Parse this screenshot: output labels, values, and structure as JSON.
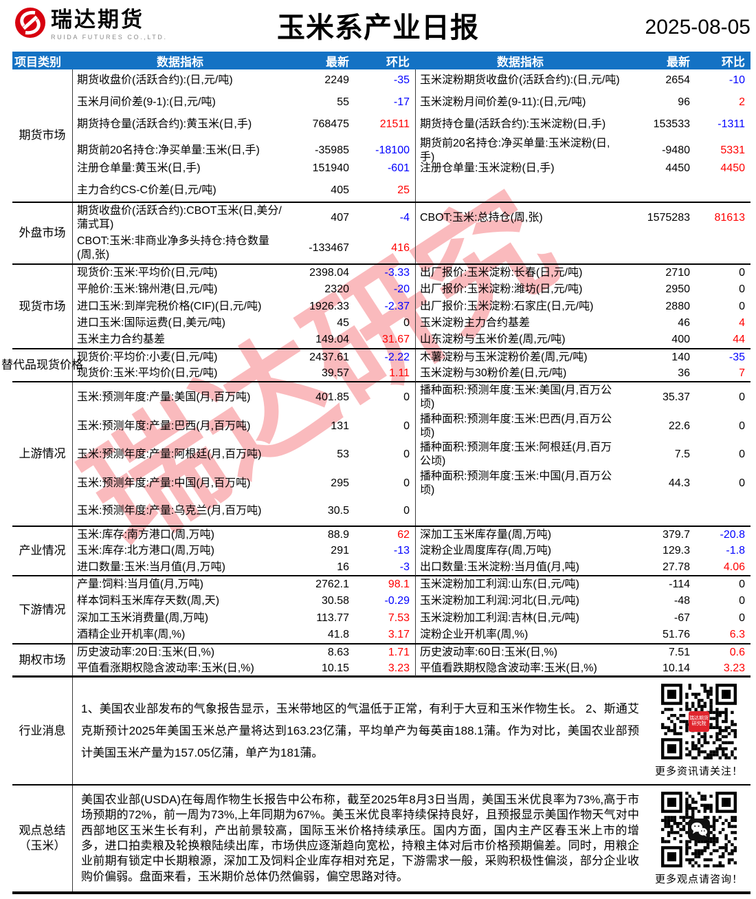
{
  "header": {
    "logo_name": "瑞达期货",
    "logo_sub": "RUIDA FUTURES CO.,LTD.",
    "title": "玉米系产业日报",
    "date": "2025-08-05"
  },
  "table_header": {
    "category": "项目类别",
    "indicator_left": "数据指标",
    "latest_left": "最新",
    "chg_left": "环比",
    "indicator_right": "数据指标",
    "latest_right": "最新",
    "chg_right": "环比"
  },
  "colors": {
    "header_bg": "#1472c4",
    "positive": "#ff0000",
    "negative": "#0000ff",
    "neutral": "#000000",
    "brand_red": "#d7000f",
    "watermark": "rgba(237,28,36,0.30)"
  },
  "watermark_text": "瑞达研究",
  "sections": [
    {
      "id": "futures",
      "category": "期货市场",
      "rows": [
        {
          "l": [
            "期货收盘价(活跃合约):(日,元/吨)",
            "2249",
            "-35"
          ],
          "r": [
            "玉米淀粉期货收盘价(活跃合约):(日,元/吨)",
            "2654",
            "-10"
          ]
        },
        {
          "l": [
            "玉米月间价差(9-1):(日,元/吨)",
            "55",
            "-17"
          ],
          "r": [
            "玉米淀粉月间价差(9-11):(日,元/吨)",
            "96",
            "2"
          ]
        },
        {
          "l": [
            "期货持仓量(活跃合约):黄玉米(日,手)",
            "768475",
            "21511"
          ],
          "r": [
            "期货持仓量(活跃合约):玉米淀粉(日,手)",
            "153533",
            "-1311"
          ]
        },
        {
          "l": [
            "期货前20名持仓:净买单量:玉米(日,手)",
            "-35985",
            "-18100"
          ],
          "r": [
            "期货前20名持仓:净买单量:玉米淀粉(日,手)",
            "-9480",
            "5331"
          ]
        },
        {
          "l": [
            "注册仓单量:黄玉米(日,手)",
            "151940",
            "-601"
          ],
          "r": [
            "注册仓单量:玉米淀粉(日,手)",
            "4450",
            "4450"
          ]
        },
        {
          "l": [
            "主力合约CS-C价差(日,元/吨)",
            "405",
            "25"
          ],
          "r": null
        }
      ]
    },
    {
      "id": "foreign",
      "category": "外盘市场",
      "rows": [
        {
          "l": [
            "期货收盘价(活跃合约):CBOT玉米(日,美分/蒲式耳)",
            "407",
            "-4"
          ],
          "r": [
            "CBOT:玉米:总持仓(周,张)",
            "1575283",
            "81613"
          ]
        },
        {
          "l": [
            "CBOT:玉米:非商业净多头持仓:持仓数量(周,张)",
            "-133467",
            "416"
          ],
          "r": null
        }
      ]
    },
    {
      "id": "spot",
      "category": "现货市场",
      "rows": [
        {
          "l": [
            "现货价:玉米:平均价(日,元/吨)",
            "2398.04",
            "-3.33"
          ],
          "r": [
            "出厂报价:玉米淀粉:长春(日,元/吨)",
            "2710",
            "0"
          ]
        },
        {
          "l": [
            "平舱价:玉米:锦州港(日,元/吨)",
            "2320",
            "-20"
          ],
          "r": [
            "出厂报价:玉米淀粉:潍坊(日,元/吨)",
            "2950",
            "0"
          ]
        },
        {
          "l": [
            "进口玉米:到岸完税价格(CIF)(日,元/吨)",
            "1926.33",
            "-2.37"
          ],
          "r": [
            "出厂报价:玉米淀粉:石家庄(日,元/吨)",
            "2880",
            "0"
          ]
        },
        {
          "l": [
            "进口玉米:国际运费(日,美元/吨)",
            "45",
            "0"
          ],
          "r": [
            "玉米淀粉主力合约基差",
            "46",
            "4"
          ]
        },
        {
          "l": [
            "玉米主力合约基差",
            "149.04",
            "31.67"
          ],
          "r": [
            "山东淀粉与玉米价差(周,元/吨)",
            "400",
            "44"
          ]
        }
      ]
    },
    {
      "id": "substitute",
      "category": "替代品现货价格",
      "rows": [
        {
          "l": [
            "现货价:平均价:小麦(日,元/吨)",
            "2437.61",
            "-2.22"
          ],
          "r": [
            "木薯淀粉与玉米淀粉价差(周,元/吨)",
            "140",
            "-35"
          ]
        },
        {
          "l": [
            "现货价:玉米:平均价(日,元/吨)",
            "39.57",
            "1.11"
          ],
          "r": [
            "玉米淀粉与30粉价差(日,元/吨)",
            "36",
            "7"
          ]
        }
      ]
    },
    {
      "id": "upstream",
      "category": "上游情况",
      "rows": [
        {
          "l": [
            "玉米:预测年度:产量:美国(月,百万吨)",
            "401.85",
            "0"
          ],
          "r": [
            "播种面积:预测年度:玉米:美国(月,百万公顷)",
            "35.37",
            "0"
          ]
        },
        {
          "l": [
            "玉米:预测年度:产量:巴西(月,百万吨)",
            "131",
            "0"
          ],
          "r": [
            "播种面积:预测年度:玉米:巴西(月,百万公顷)",
            "22.6",
            "0"
          ]
        },
        {
          "l": [
            "玉米:预测年度:产量:阿根廷(月,百万吨)",
            "53",
            "0"
          ],
          "r": [
            "播种面积:预测年度:玉米:阿根廷(月,百万公顷)",
            "7.5",
            "0"
          ]
        },
        {
          "l": [
            "玉米:预测年度:产量:中国(月,百万吨)",
            "295",
            "0"
          ],
          "r": [
            "播种面积:预测年度:玉米:中国(月,百万公顷)",
            "44.3",
            "0"
          ]
        },
        {
          "l": [
            "玉米:预测年度:产量:乌克兰(月,百万吨)",
            "30.5",
            "0"
          ],
          "r": null
        }
      ]
    },
    {
      "id": "industry",
      "category": "产业情况",
      "rows": [
        {
          "l": [
            "玉米:库存:南方港口(周,万吨)",
            "88.9",
            "62"
          ],
          "r": [
            "深加工玉米库存量(周,万吨)",
            "379.7",
            "-20.8"
          ]
        },
        {
          "l": [
            "玉米:库存:北方港口(周,万吨)",
            "291",
            "-13"
          ],
          "r": [
            "淀粉企业周度库存(周,万吨)",
            "129.3",
            "-1.8"
          ]
        },
        {
          "l": [
            "进口数量:玉米:当月值(月,万吨)",
            "16",
            "-3"
          ],
          "r": [
            "出口数量:玉米淀粉:当月值(月,吨)",
            "27.78",
            "4.06"
          ]
        }
      ]
    },
    {
      "id": "downstream",
      "category": "下游情况",
      "rows": [
        {
          "l": [
            "产量:饲料:当月值(月,万吨)",
            "2762.1",
            "98.1"
          ],
          "r": [
            "玉米淀粉加工利润:山东(日,元/吨)",
            "-114",
            "0"
          ]
        },
        {
          "l": [
            "样本饲料玉米库存天数(周,天)",
            "30.58",
            "-0.29"
          ],
          "r": [
            "玉米淀粉加工利润:河北(日,元/吨)",
            "-48",
            "0"
          ]
        },
        {
          "l": [
            "深加工玉米消费量(周,万吨)",
            "113.77",
            "7.53"
          ],
          "r": [
            "玉米淀粉加工利润:吉林(日,元/吨)",
            "-67",
            "0"
          ]
        },
        {
          "l": [
            "酒精企业开机率(周,%)",
            "41.8",
            "3.17"
          ],
          "r": [
            "淀粉企业开机率(周,%)",
            "51.76",
            "6.3"
          ]
        }
      ]
    },
    {
      "id": "options",
      "category": "期权市场",
      "rows": [
        {
          "l": [
            "历史波动率:20日:玉米(日,%)",
            "8.63",
            "1.71"
          ],
          "r": [
            "历史波动率:60日:玉米(日,%)",
            "7.51",
            "0.6"
          ]
        },
        {
          "l": [
            "平值看涨期权隐含波动率:玉米(日,%)",
            "10.15",
            "3.23"
          ],
          "r": [
            "平值看跌期权隐含波动率:玉米(日,%)",
            "10.14",
            "3.23"
          ]
        }
      ]
    }
  ],
  "news": {
    "category": "行业消息",
    "text": "1、美国农业部发布的气象报告显示，玉米带地区的气温低于正常，有利于大豆和玉米作物生长。 2、斯通艾克斯预计2025年美国玉米总产量将达到163.23亿蒲，平均单产为每英亩188.1蒲。作为对比，美国农业部预计美国玉米产量为157.05亿蒲，单产为181蒲。",
    "badge": [
      "瑞达期货",
      "研究院"
    ],
    "qr_caption": "更多资讯请关注！"
  },
  "summary": {
    "category": "观点总结（玉米）",
    "text": "美国农业部(USDA)在每周作物生长报告中公布称，截至2025年8月3日当周，美国玉米优良率为73%,高于市场预期的72%，前一周为73%,上年同期为67%。美玉米优良率持续保持良好，且预报显示美国作物天气对中西部地区玉米生长有利，产出前景较高，国际玉米价格持续承压。国内方面，国内主产区春玉米上市的增多，进口拍卖粮及轮换粮陆续出库，市场供应逐渐趋向宽松，持粮主体对后市价格预期偏差。同时，用粮企业前期有锁定中长期粮源，深加工及饲料企业库存相对充足，下游需求一般，采购积极性偏淡，部分企业收购价偏弱。盘面来看，玉米期价总体仍然偏弱，偏空思路对待。",
    "qr_caption": "更多观点请咨询！"
  }
}
